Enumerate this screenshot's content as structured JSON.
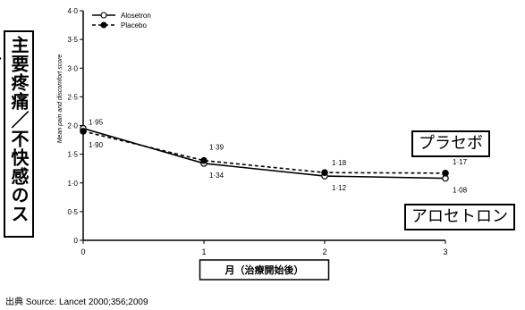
{
  "side_label": "主要疼痛／不快感のスコア",
  "callouts": {
    "placebo": "プラセボ",
    "alosetron": "アロセトロン"
  },
  "source_text": "出典  Source: Lancet 2000;356;2009",
  "chart_data": {
    "type": "line",
    "x": [
      0,
      1,
      2,
      3
    ],
    "xlabel": "月（治療開始後）",
    "ylabel": "Mean pain and discomfort score",
    "xlim": [
      0,
      3
    ],
    "ylim": [
      0,
      4.0
    ],
    "xticks": [
      "0",
      "1",
      "2",
      "3"
    ],
    "yticks": [
      "0",
      "0·5",
      "1·0",
      "1·5",
      "2·0",
      "2·5",
      "3·0",
      "3·5",
      "4·0"
    ],
    "legend_position": "top-left",
    "grid": false,
    "series": [
      {
        "name": "Alosetron",
        "values": [
          1.95,
          1.34,
          1.12,
          1.08
        ],
        "labels": [
          "1·95",
          "1·34",
          "1·12",
          "1·08"
        ],
        "style": "solid",
        "marker": "open-circle"
      },
      {
        "name": "Placebo",
        "values": [
          1.9,
          1.39,
          1.18,
          1.17
        ],
        "labels": [
          "1·90",
          "1·39",
          "1·18",
          "1·17"
        ],
        "style": "dashed",
        "marker": "filled-circle"
      }
    ]
  }
}
